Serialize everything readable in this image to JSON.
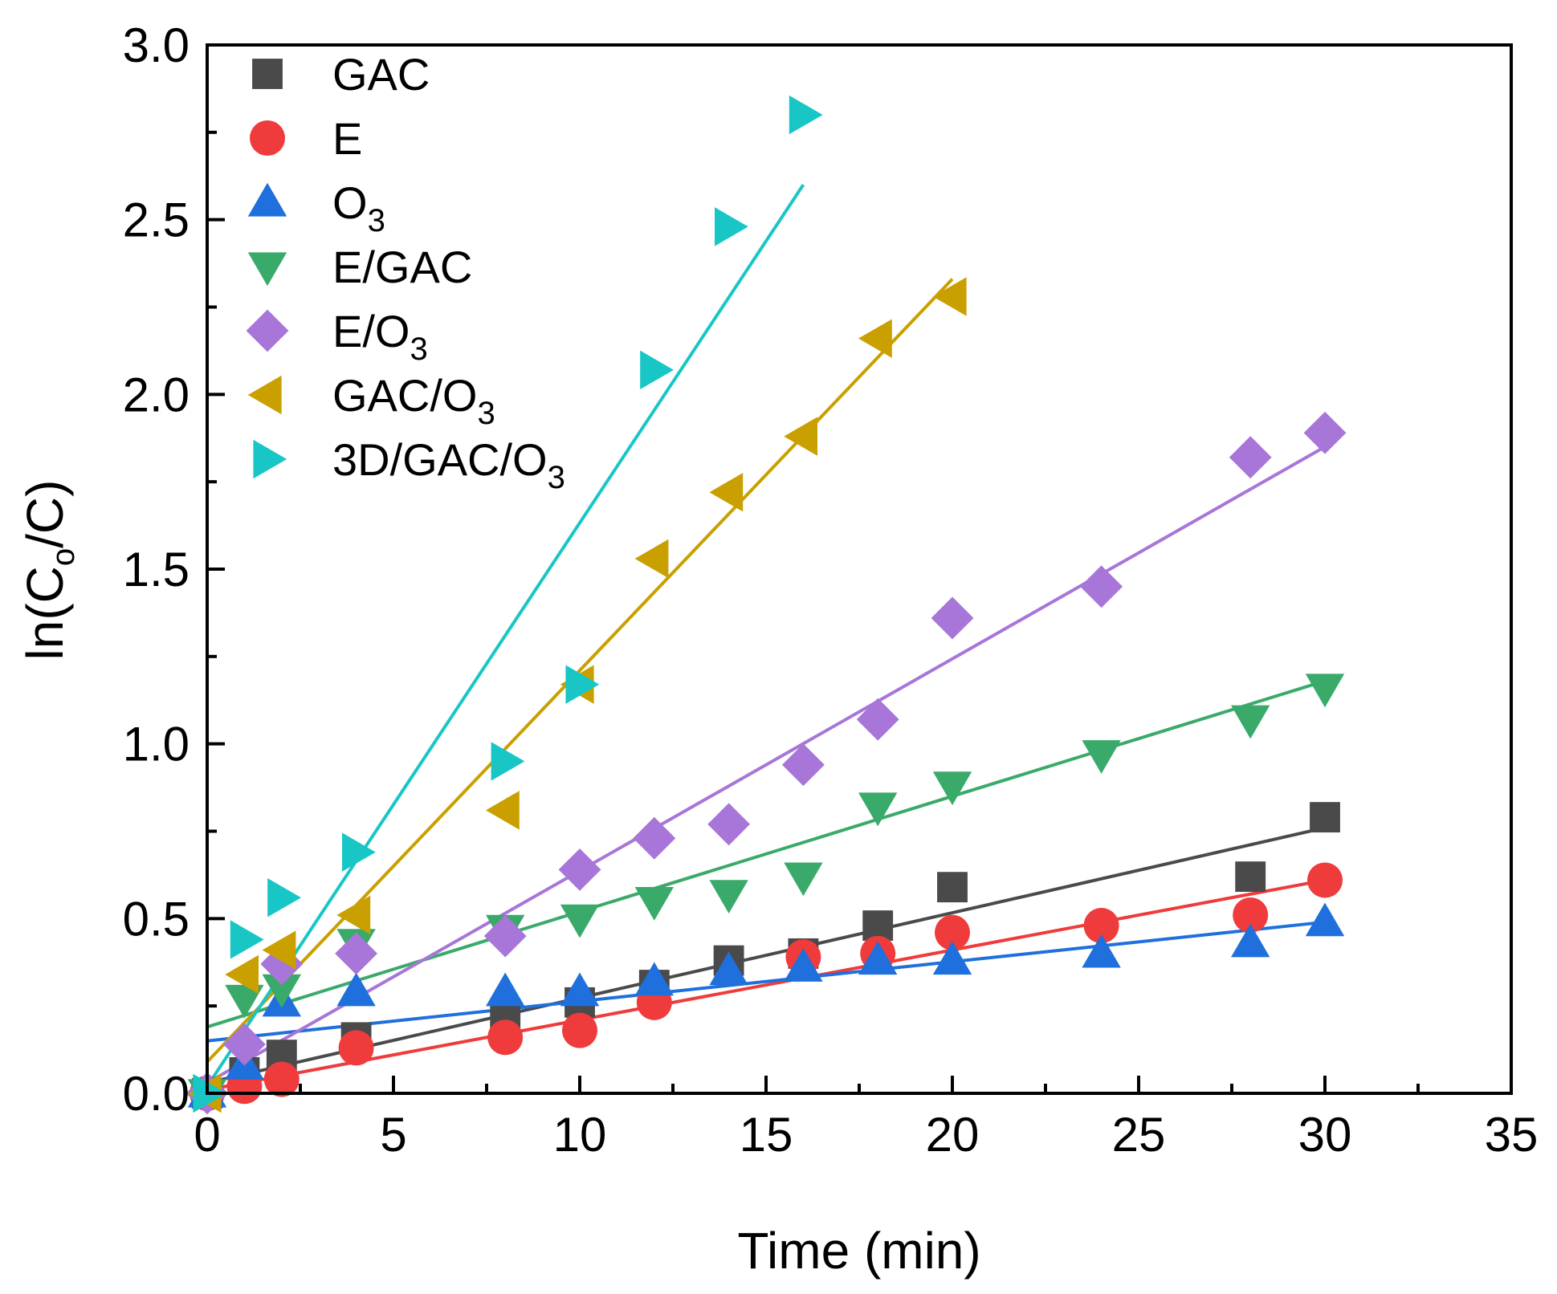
{
  "chart_data": {
    "type": "scatter",
    "title": "",
    "xlabel": "Time (min)",
    "ylabel": {
      "prefix": "ln(C",
      "sub": "o",
      "suffix": "/C)"
    },
    "xlim": [
      0,
      35
    ],
    "ylim": [
      0,
      3.0
    ],
    "x_ticks": [
      "0",
      "5",
      "10",
      "15",
      "20",
      "25",
      "30",
      "35"
    ],
    "y_ticks": [
      "0.0",
      "0.5",
      "1.0",
      "1.5",
      "2.0",
      "2.5",
      "3.0"
    ],
    "grid": false,
    "legend_position": "top-left",
    "series": [
      {
        "name": "GAC",
        "label": {
          "text": "GAC",
          "sub": ""
        },
        "marker": "square",
        "color": "#4a4a4a",
        "x": [
          0,
          1,
          2,
          4,
          8,
          10,
          12,
          14,
          16,
          18,
          20,
          28,
          30
        ],
        "y": [
          0.0,
          0.06,
          0.11,
          0.16,
          0.22,
          0.26,
          0.31,
          0.38,
          0.4,
          0.48,
          0.59,
          0.62,
          0.79
        ],
        "fit": [
          [
            0,
            0.03
          ],
          [
            30,
            0.76
          ]
        ]
      },
      {
        "name": "E",
        "label": {
          "text": "E",
          "sub": ""
        },
        "marker": "circle",
        "color": "#ef3b3b",
        "x": [
          0,
          1,
          2,
          4,
          8,
          10,
          12,
          16,
          18,
          20,
          24,
          28,
          30
        ],
        "y": [
          0.0,
          0.02,
          0.04,
          0.13,
          0.16,
          0.18,
          0.26,
          0.39,
          0.4,
          0.46,
          0.48,
          0.51,
          0.61
        ],
        "fit": [
          [
            0,
            0.01
          ],
          [
            30,
            0.61
          ]
        ]
      },
      {
        "name": "O3",
        "label": {
          "text": "O",
          "sub": "3"
        },
        "marker": "triangle-up",
        "color": "#1f6fdc",
        "x": [
          0,
          1,
          2,
          4,
          8,
          10,
          12,
          14,
          16,
          18,
          20,
          24,
          28,
          30
        ],
        "y": [
          0.0,
          0.08,
          0.26,
          0.29,
          0.29,
          0.29,
          0.32,
          0.35,
          0.36,
          0.38,
          0.38,
          0.4,
          0.43,
          0.49
        ],
        "fit": [
          [
            0,
            0.15
          ],
          [
            30,
            0.49
          ]
        ]
      },
      {
        "name": "E/GAC",
        "label": {
          "text": "E/GAC",
          "sub": ""
        },
        "marker": "triangle-down",
        "color": "#3aaa6a",
        "x": [
          0,
          1,
          2,
          4,
          8,
          10,
          12,
          14,
          16,
          18,
          20,
          24,
          28,
          30
        ],
        "y": [
          0.0,
          0.27,
          0.3,
          0.43,
          0.47,
          0.5,
          0.55,
          0.57,
          0.62,
          0.82,
          0.88,
          0.97,
          1.07,
          1.16
        ],
        "fit": [
          [
            0,
            0.19
          ],
          [
            30,
            1.18
          ]
        ]
      },
      {
        "name": "E/O3",
        "label": {
          "text": "E/O",
          "sub": "3"
        },
        "marker": "diamond",
        "color": "#a875d8",
        "x": [
          0,
          1,
          2,
          4,
          8,
          10,
          12,
          14,
          16,
          18,
          20,
          24,
          28,
          30
        ],
        "y": [
          0.0,
          0.14,
          0.37,
          0.4,
          0.45,
          0.64,
          0.73,
          0.77,
          0.94,
          1.07,
          1.36,
          1.45,
          1.82,
          1.89
        ],
        "fit": [
          [
            0,
            0.03
          ],
          [
            30,
            1.85
          ]
        ]
      },
      {
        "name": "GAC/O3",
        "label": {
          "text": "GAC/O",
          "sub": "3"
        },
        "marker": "triangle-left",
        "color": "#c9a000",
        "x": [
          0,
          1,
          2,
          4,
          8,
          10,
          12,
          14,
          16,
          18,
          20
        ],
        "y": [
          0.0,
          0.34,
          0.41,
          0.51,
          0.81,
          1.17,
          1.53,
          1.72,
          1.88,
          2.16,
          2.28
        ],
        "fit": [
          [
            0,
            0.09
          ],
          [
            20,
            2.33
          ]
        ]
      },
      {
        "name": "3D/GAC/O3",
        "label": {
          "text": "3D/GAC/O",
          "sub": "3"
        },
        "marker": "triangle-right",
        "color": "#18c6c6",
        "x": [
          0,
          1,
          2,
          4,
          8,
          10,
          12,
          14,
          16
        ],
        "y": [
          0.0,
          0.44,
          0.56,
          0.69,
          0.95,
          1.17,
          2.07,
          2.48,
          2.8
        ],
        "fit": [
          [
            0,
            0.02
          ],
          [
            16,
            2.6
          ]
        ]
      }
    ]
  }
}
